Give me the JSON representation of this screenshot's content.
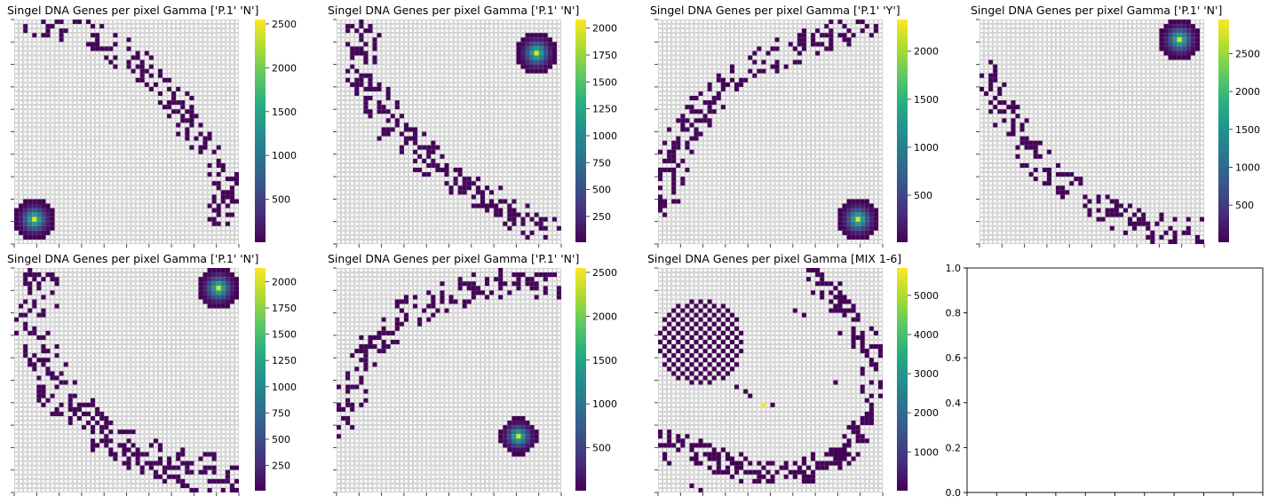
{
  "figure": {
    "colormap": "viridis",
    "grid_color": "#cccccc",
    "background": "#ffffff"
  },
  "chart_data": [
    {
      "type": "heatmap",
      "title": "Singel DNA Genes per pixel Gamma ['P.1' 'N']",
      "colorbar": {
        "range": [
          10,
          2550
        ],
        "ticks": [
          500,
          1000,
          1500,
          2000,
          2500
        ]
      },
      "grid": {
        "cols": 50,
        "rows": 50
      },
      "spot": {
        "cx": 4,
        "cy": 44,
        "r": 4.6,
        "peak": 2550
      },
      "band": {
        "points": [
          [
            4,
            0
          ],
          [
            17,
            3
          ],
          [
            27,
            9
          ],
          [
            35,
            17
          ],
          [
            42,
            28
          ],
          [
            47,
            36
          ],
          [
            46,
            44
          ]
        ],
        "width": 7,
        "density": 0.45
      }
    },
    {
      "type": "heatmap",
      "title": "Singel DNA Genes per pixel Gamma ['P.1' 'N']",
      "colorbar": {
        "range": [
          10,
          2080
        ],
        "ticks": [
          250,
          500,
          750,
          1000,
          1250,
          1500,
          1750,
          2000
        ]
      },
      "grid": {
        "cols": 50,
        "rows": 50
      },
      "spot": {
        "cx": 44,
        "cy": 7,
        "r": 4.6,
        "peak": 2080
      },
      "band": {
        "points": [
          [
            5,
            2
          ],
          [
            6,
            13
          ],
          [
            13,
            25
          ],
          [
            24,
            34
          ],
          [
            36,
            41
          ],
          [
            46,
            46
          ]
        ],
        "width": 8,
        "density": 0.45
      }
    },
    {
      "type": "heatmap",
      "title": "Singel DNA Genes per pixel Gamma ['P.1' 'Y']",
      "colorbar": {
        "range": [
          10,
          2330
        ],
        "ticks": [
          500,
          1000,
          1500,
          2000
        ]
      },
      "grid": {
        "cols": 50,
        "rows": 50
      },
      "spot": {
        "cx": 44,
        "cy": 44,
        "r": 4.6,
        "peak": 2330
      },
      "band": {
        "points": [
          [
            1,
            40
          ],
          [
            4,
            27
          ],
          [
            12,
            16
          ],
          [
            22,
            9
          ],
          [
            34,
            4
          ],
          [
            46,
            1
          ]
        ],
        "width": 7,
        "density": 0.45
      }
    },
    {
      "type": "heatmap",
      "title": "Singel DNA Genes per pixel Gamma ['P.1' 'N']",
      "colorbar": {
        "range": [
          10,
          2950
        ],
        "ticks": [
          500,
          1000,
          1500,
          2000,
          2500
        ]
      },
      "grid": {
        "cols": 50,
        "rows": 50
      },
      "spot": {
        "cx": 44,
        "cy": 4,
        "r": 4.6,
        "peak": 2950
      },
      "band": {
        "points": [
          [
            2,
            10
          ],
          [
            6,
            22
          ],
          [
            14,
            33
          ],
          [
            26,
            41
          ],
          [
            38,
            46
          ],
          [
            48,
            47
          ]
        ],
        "width": 7,
        "density": 0.42
      }
    },
    {
      "type": "heatmap",
      "title": "Singel DNA Genes per pixel Gamma ['P.1' 'N']",
      "colorbar": {
        "range": [
          10,
          2130
        ],
        "ticks": [
          250,
          500,
          750,
          1000,
          1250,
          1500,
          1750,
          2000
        ]
      },
      "grid": {
        "cols": 50,
        "rows": 50
      },
      "spot": {
        "cx": 45,
        "cy": 4,
        "r": 4.6,
        "peak": 2130
      },
      "band": {
        "points": [
          [
            5,
            3
          ],
          [
            4,
            15
          ],
          [
            9,
            27
          ],
          [
            19,
            36
          ],
          [
            32,
            43
          ],
          [
            46,
            46
          ]
        ],
        "width": 9,
        "density": 0.46
      }
    },
    {
      "type": "heatmap",
      "title": "Singel DNA Genes per pixel Gamma ['P.1' 'N']",
      "colorbar": {
        "range": [
          10,
          2550
        ],
        "ticks": [
          500,
          1000,
          1500,
          2000,
          2500
        ]
      },
      "grid": {
        "cols": 50,
        "rows": 50
      },
      "spot": {
        "cx": 40,
        "cy": 37,
        "r": 4.2,
        "peak": 2550
      },
      "band": {
        "points": [
          [
            1,
            34
          ],
          [
            5,
            20
          ],
          [
            14,
            10
          ],
          [
            26,
            5
          ],
          [
            38,
            3
          ],
          [
            49,
            4
          ]
        ],
        "width": 7,
        "density": 0.45
      }
    },
    {
      "type": "heatmap",
      "title": "Singel DNA Genes per pixel Gamma [MIX 1-6]",
      "colorbar": {
        "range": [
          10,
          5700
        ],
        "ticks": [
          1000,
          2000,
          3000,
          4000,
          5000
        ]
      },
      "grid": {
        "cols": 50,
        "rows": 50
      },
      "disk": {
        "cx": 9,
        "cy": 16,
        "r": 9.5
      },
      "hot_pixel": {
        "x": 23,
        "y": 30,
        "value": 5700
      },
      "band": {
        "points": [
          [
            33,
            0
          ],
          [
            41,
            8
          ],
          [
            47,
            18
          ],
          [
            47,
            30
          ],
          [
            42,
            40
          ],
          [
            32,
            45
          ],
          [
            20,
            45
          ],
          [
            10,
            41
          ],
          [
            1,
            38
          ]
        ],
        "width": 6,
        "density": 0.5
      },
      "scatter": [
        [
          32,
          10
        ],
        [
          40,
          14
        ],
        [
          17,
          26
        ],
        [
          19,
          27
        ],
        [
          20,
          28
        ],
        [
          25,
          30
        ],
        [
          30,
          9
        ],
        [
          39,
          25
        ],
        [
          9,
          49
        ],
        [
          7,
          48
        ],
        [
          1,
          42
        ],
        [
          2,
          43
        ]
      ]
    },
    {
      "type": "empty",
      "title": "",
      "ylim": [
        0.0,
        1.0
      ],
      "y_ticks": [
        "0.0",
        "0.2",
        "0.4",
        "0.6",
        "0.8",
        "1.0"
      ],
      "x_tick_count": 11
    }
  ]
}
